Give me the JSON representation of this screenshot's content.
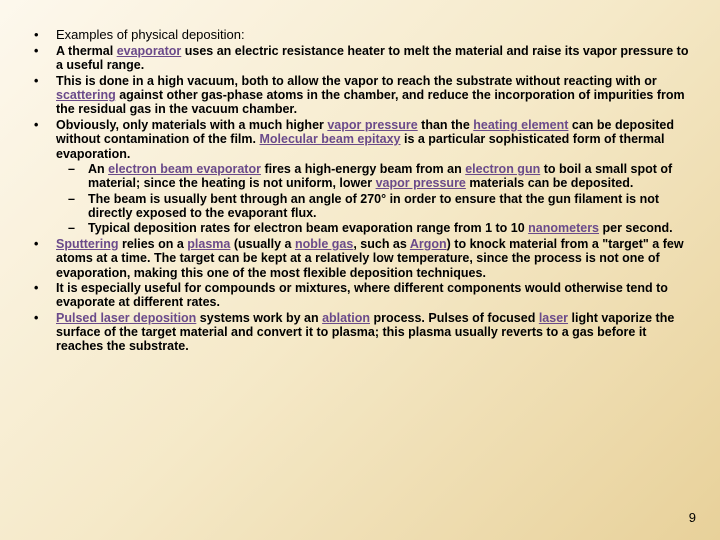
{
  "colors": {
    "bg_start": "#fdf8ed",
    "bg_mid": "#f5e9c8",
    "bg_end": "#e8d19a",
    "text": "#000000",
    "link": "#6a4a8a"
  },
  "typography": {
    "body_family": "Comic Sans MS",
    "body_size_pt": 9.5,
    "body_weight": "bold",
    "title_family": "Arial",
    "title_size_pt": 10,
    "title_weight": "normal",
    "pagenum_family": "Arial",
    "pagenum_size_pt": 10
  },
  "page_number": "9",
  "items": [
    {
      "title": true,
      "runs": [
        {
          "t": "Examples of physical deposition:"
        }
      ]
    },
    {
      "runs": [
        {
          "t": "A "
        },
        {
          "t": "thermal ",
          "b": true
        },
        {
          "t": "evaporator",
          "b": true,
          "link": true
        },
        {
          "t": " uses an electric resistance heater to melt the material and raise its vapor pressure to a useful range."
        }
      ]
    },
    {
      "runs": [
        {
          "t": "This is done in a high vacuum, both to allow the vapor to reach the substrate without reacting with or "
        },
        {
          "t": "scattering",
          "link": true
        },
        {
          "t": " against other gas-phase atoms in the chamber, and reduce the incorporation of impurities from the residual gas in the vacuum chamber."
        }
      ]
    },
    {
      "runs": [
        {
          "t": "Obviously, only materials with a much higher "
        },
        {
          "t": "vapor pressure",
          "link": true
        },
        {
          "t": " than the "
        },
        {
          "t": "heating element",
          "link": true
        },
        {
          "t": " can be deposited without contamination of the film. "
        },
        {
          "t": "Molecular beam epitaxy",
          "link": true
        },
        {
          "t": " is a particular sophisticated form of thermal evaporation."
        }
      ],
      "sub": [
        {
          "runs": [
            {
              "t": "An "
            },
            {
              "t": "electron beam evaporator",
              "b": true,
              "link": true
            },
            {
              "t": " fires a high-energy beam from an "
            },
            {
              "t": "electron gun",
              "link": true
            },
            {
              "t": " to boil a small spot of material; since the heating is not uniform, lower "
            },
            {
              "t": "vapor pressure",
              "link": true
            },
            {
              "t": " materials can be deposited."
            }
          ]
        },
        {
          "runs": [
            {
              "t": "The beam is usually bent through an angle of 270° in order to ensure that the gun filament is not directly exposed to the evaporant flux."
            }
          ]
        },
        {
          "runs": [
            {
              "t": "Typical deposition rates for electron beam evaporation range from 1 to 10 "
            },
            {
              "t": "nanometers",
              "link": true
            },
            {
              "t": " per second."
            }
          ]
        }
      ]
    },
    {
      "runs": [
        {
          "t": "Sputtering",
          "b": true,
          "link": true
        },
        {
          "t": " relies on a "
        },
        {
          "t": "plasma",
          "link": true
        },
        {
          "t": " (usually a "
        },
        {
          "t": "noble gas",
          "link": true
        },
        {
          "t": ", such as "
        },
        {
          "t": "Argon",
          "link": true
        },
        {
          "t": ") to knock material from a \"target\" a few atoms at a time. The target can be kept at a relatively low temperature, since the process is not one of evaporation, making this one of the most flexible deposition techniques."
        }
      ]
    },
    {
      "runs": [
        {
          "t": "It is especially useful for compounds or mixtures, where different components would otherwise tend to evaporate at different rates."
        }
      ]
    },
    {
      "runs": [
        {
          "t": "Pulsed laser deposition",
          "b": true,
          "link": true
        },
        {
          "t": " systems work by an "
        },
        {
          "t": "ablation",
          "link": true
        },
        {
          "t": " process. Pulses of focused "
        },
        {
          "t": "laser",
          "link": true
        },
        {
          "t": " light vaporize the surface of the target material and convert it to plasma; this plasma usually reverts to a gas before it reaches the substrate."
        }
      ]
    }
  ]
}
